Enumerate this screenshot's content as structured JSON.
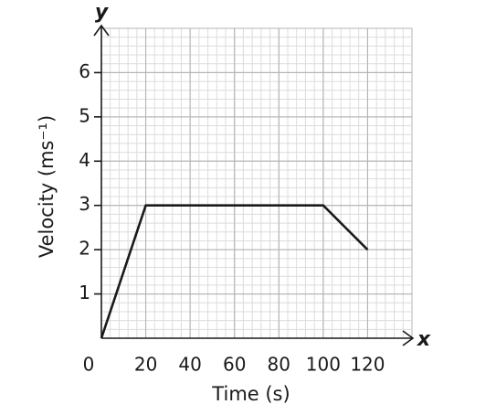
{
  "chart_data": {
    "type": "line",
    "x_label": "Time (s)",
    "y_label": "Velocity (ms⁻¹)",
    "x_axis_symbol": "x",
    "y_axis_symbol": "y",
    "x": [
      0,
      20,
      100,
      120
    ],
    "series": [
      {
        "color": "#1a1a1a",
        "values": [
          0,
          3,
          3,
          2
        ]
      }
    ],
    "xlim": [
      0,
      140
    ],
    "ylim": [
      0,
      7
    ],
    "xticks": [
      0,
      20,
      40,
      60,
      80,
      100,
      120
    ],
    "yticks": [
      1,
      2,
      3,
      4,
      5,
      6
    ],
    "grid": true
  }
}
